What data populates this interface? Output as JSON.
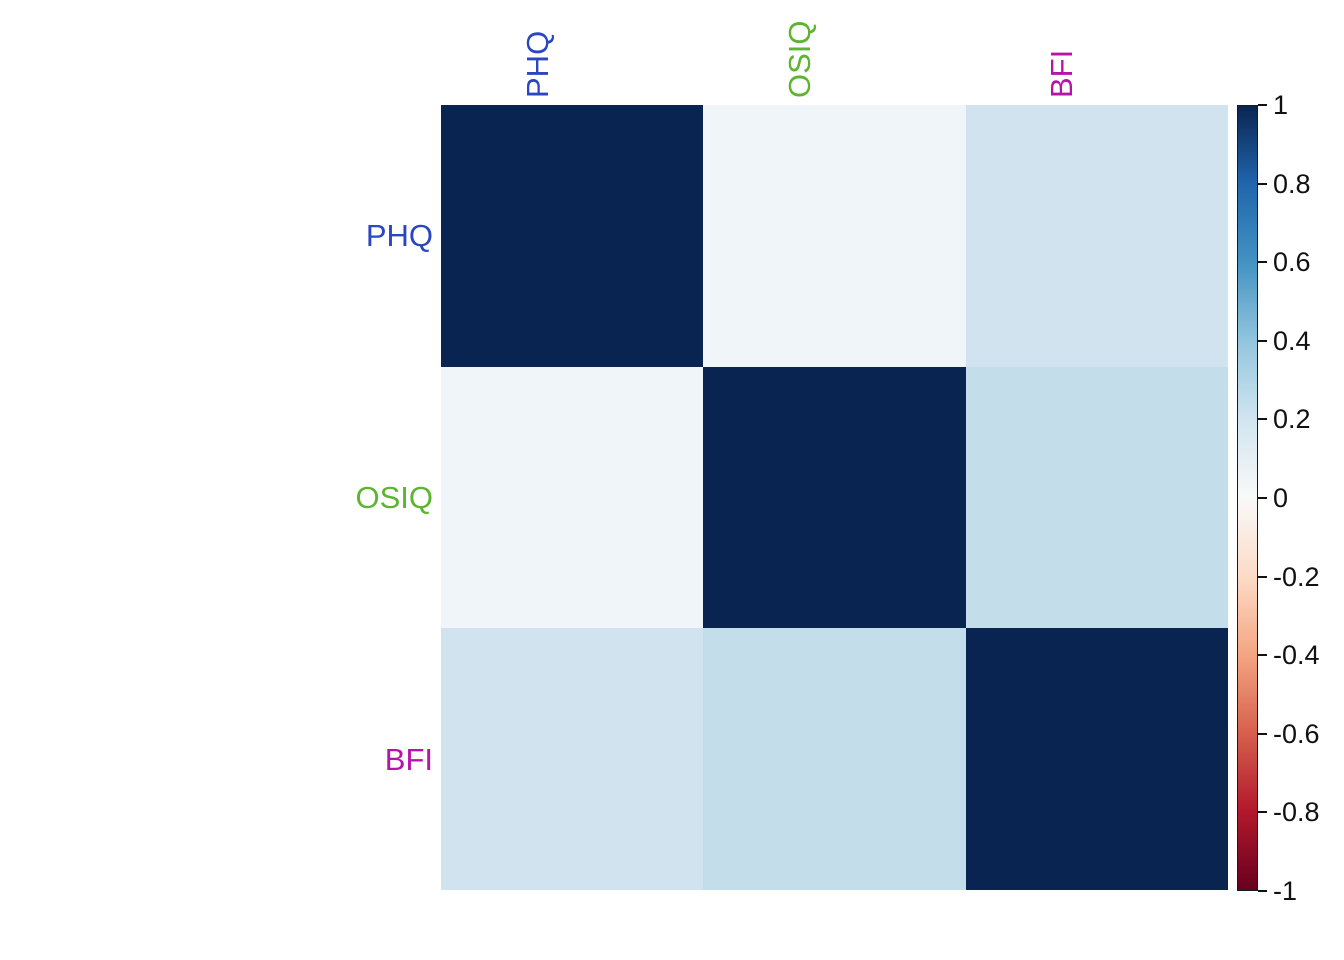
{
  "chart_data": {
    "type": "heatmap",
    "title": "",
    "variables": [
      "PHQ",
      "OSIQ",
      "BFI"
    ],
    "label_colors": {
      "PHQ": "#2C46C1",
      "OSIQ": "#5CB52E",
      "BFI": "#B613AD"
    },
    "matrix": [
      [
        1.0,
        0.05,
        0.2
      ],
      [
        0.05,
        1.0,
        0.24
      ],
      [
        0.2,
        0.24,
        1.0
      ]
    ],
    "cell_colors": [
      [
        "#0A2452",
        "#F0F5FA",
        "#D2E3F0"
      ],
      [
        "#F0F5FA",
        "#0A2452",
        "#C4DDEB"
      ],
      [
        "#D2E3F0",
        "#C4DDEB",
        "#0A2452"
      ]
    ],
    "grid": false,
    "legend_position": "right",
    "colorbar": {
      "min": -1,
      "max": 1,
      "ticks": [
        1,
        0.8,
        0.6,
        0.4,
        0.2,
        0,
        -0.2,
        -0.4,
        -0.6,
        -0.8,
        -1
      ],
      "tick_labels": [
        "1",
        "0.8",
        "0.6",
        "0.4",
        "0.2",
        "0",
        "-0.2",
        "-0.4",
        "-0.6",
        "-0.8",
        "-1"
      ],
      "tick_color": "#111111",
      "colormap_top_to_bottom": [
        "#0A2452",
        "#2166AC",
        "#4393C3",
        "#92C5DE",
        "#D1E5F0",
        "#F9F9F9",
        "#FDDBC7",
        "#F4A582",
        "#D6604D",
        "#B2182B",
        "#67001F"
      ]
    }
  }
}
